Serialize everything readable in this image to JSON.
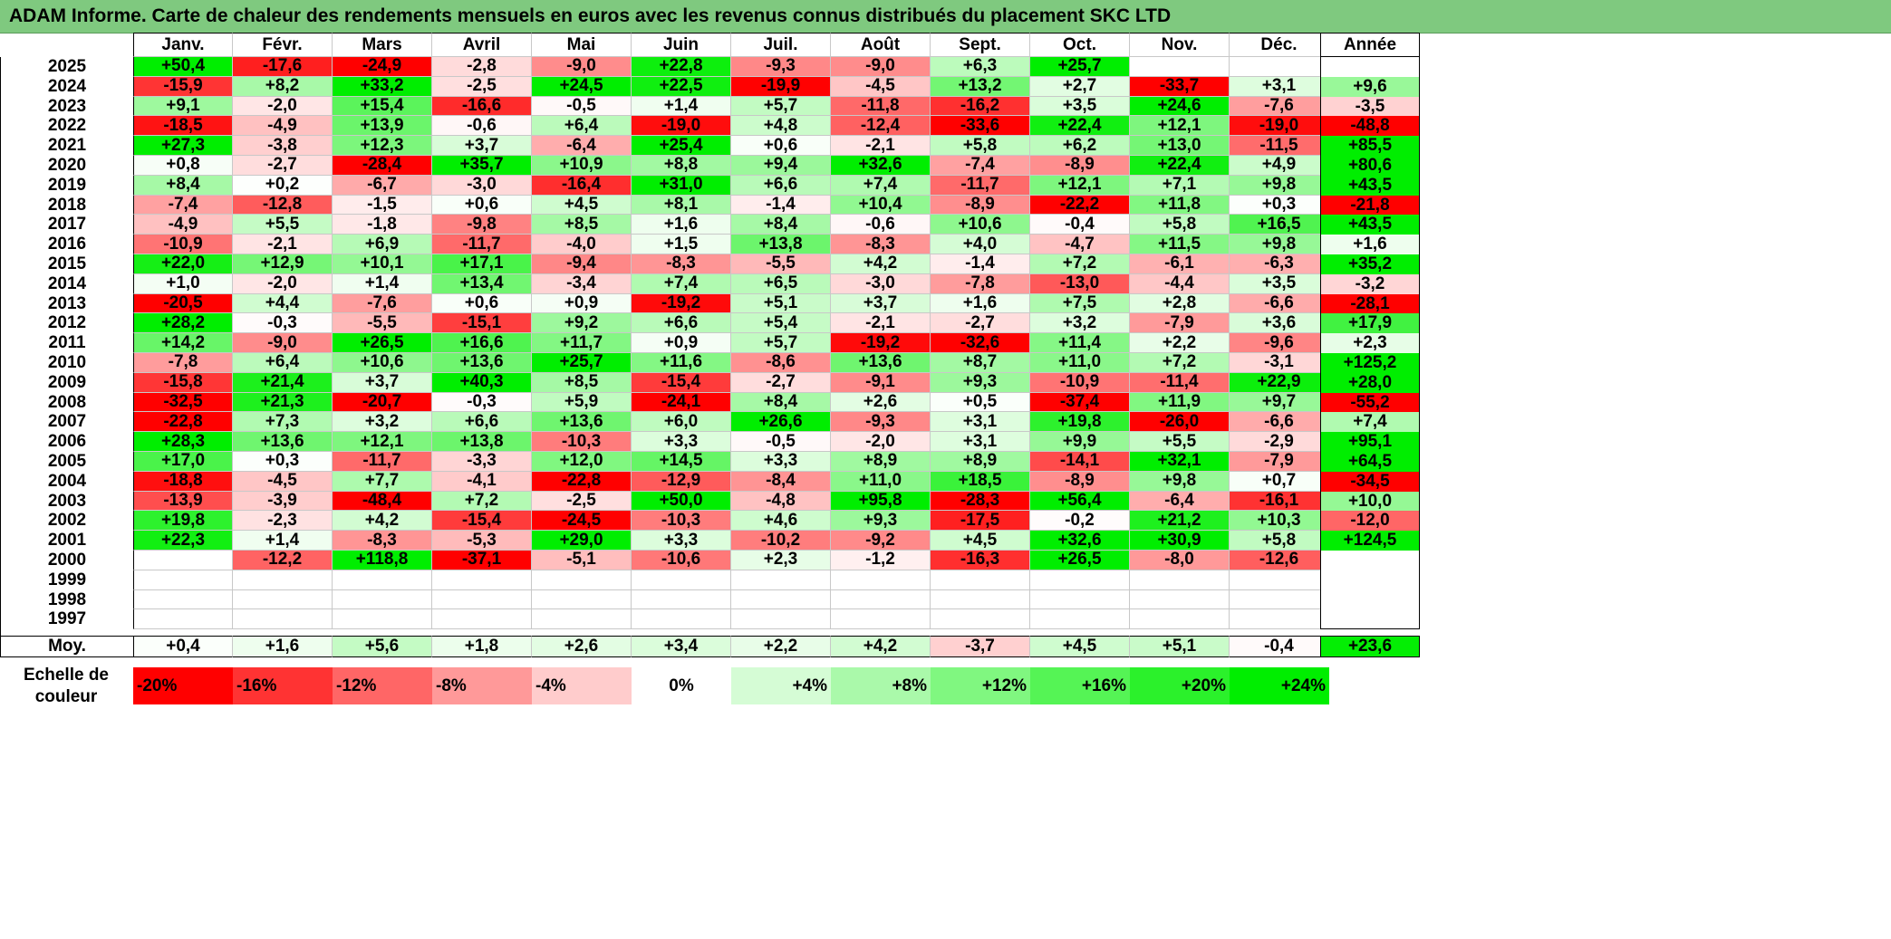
{
  "title": "ADAM Informe. Carte de chaleur des rendements mensuels en euros avec les revenus connus distribués du placement SKC LTD",
  "chart_data": {
    "type": "heatmap",
    "columns": [
      "Janv.",
      "Févr.",
      "Mars",
      "Avril",
      "Mai",
      "Juin",
      "Juil.",
      "Août",
      "Sept.",
      "Oct.",
      "Nov.",
      "Déc."
    ],
    "year_header": "Année",
    "avg_label": "Moy.",
    "rows": [
      {
        "year": "2025",
        "values": [
          "+50,4",
          "-17,6",
          "-24,9",
          "-2,8",
          "-9,0",
          "+22,8",
          "-9,3",
          "-9,0",
          "+6,3",
          "+25,7",
          "",
          ""
        ],
        "annual": ""
      },
      {
        "year": "2024",
        "values": [
          "-15,9",
          "+8,2",
          "+33,2",
          "-2,5",
          "+24,5",
          "+22,5",
          "-19,9",
          "-4,5",
          "+13,2",
          "+2,7",
          "-33,7",
          "+3,1"
        ],
        "annual": "+9,6"
      },
      {
        "year": "2023",
        "values": [
          "+9,1",
          "-2,0",
          "+15,4",
          "-16,6",
          "-0,5",
          "+1,4",
          "+5,7",
          "-11,8",
          "-16,2",
          "+3,5",
          "+24,6",
          "-7,6"
        ],
        "annual": "-3,5"
      },
      {
        "year": "2022",
        "values": [
          "-18,5",
          "-4,9",
          "+13,9",
          "-0,6",
          "+6,4",
          "-19,0",
          "+4,8",
          "-12,4",
          "-33,6",
          "+22,4",
          "+12,1",
          "-19,0"
        ],
        "annual": "-48,8"
      },
      {
        "year": "2021",
        "values": [
          "+27,3",
          "-3,8",
          "+12,3",
          "+3,7",
          "-6,4",
          "+25,4",
          "+0,6",
          "-2,1",
          "+5,8",
          "+6,2",
          "+13,0",
          "-11,5"
        ],
        "annual": "+85,5"
      },
      {
        "year": "2020",
        "values": [
          "+0,8",
          "-2,7",
          "-28,4",
          "+35,7",
          "+10,9",
          "+8,8",
          "+9,4",
          "+32,6",
          "-7,4",
          "-8,9",
          "+22,4",
          "+4,9"
        ],
        "annual": "+80,6"
      },
      {
        "year": "2019",
        "values": [
          "+8,4",
          "+0,2",
          "-6,7",
          "-3,0",
          "-16,4",
          "+31,0",
          "+6,6",
          "+7,4",
          "-11,7",
          "+12,1",
          "+7,1",
          "+9,8"
        ],
        "annual": "+43,5"
      },
      {
        "year": "2018",
        "values": [
          "-7,4",
          "-12,8",
          "-1,5",
          "+0,6",
          "+4,5",
          "+8,1",
          "-1,4",
          "+10,4",
          "-8,9",
          "-22,2",
          "+11,8",
          "+0,3"
        ],
        "annual": "-21,8"
      },
      {
        "year": "2017",
        "values": [
          "-4,9",
          "+5,5",
          "-1,8",
          "-9,8",
          "+8,5",
          "+1,6",
          "+8,4",
          "-0,6",
          "+10,6",
          "-0,4",
          "+5,8",
          "+16,5"
        ],
        "annual": "+43,5"
      },
      {
        "year": "2016",
        "values": [
          "-10,9",
          "-2,1",
          "+6,9",
          "-11,7",
          "-4,0",
          "+1,5",
          "+13,8",
          "-8,3",
          "+4,0",
          "-4,7",
          "+11,5",
          "+9,8"
        ],
        "annual": "+1,6"
      },
      {
        "year": "2015",
        "values": [
          "+22,0",
          "+12,9",
          "+10,1",
          "+17,1",
          "-9,4",
          "-8,3",
          "-5,5",
          "+4,2",
          "-1,4",
          "+7,2",
          "-6,1",
          "-6,3"
        ],
        "annual": "+35,2"
      },
      {
        "year": "2014",
        "values": [
          "+1,0",
          "-2,0",
          "+1,4",
          "+13,4",
          "-3,4",
          "+7,4",
          "+6,5",
          "-3,0",
          "-7,8",
          "-13,0",
          "-4,4",
          "+3,5"
        ],
        "annual": "-3,2"
      },
      {
        "year": "2013",
        "values": [
          "-20,5",
          "+4,4",
          "-7,6",
          "+0,6",
          "+0,9",
          "-19,2",
          "+5,1",
          "+3,7",
          "+1,6",
          "+7,5",
          "+2,8",
          "-6,6"
        ],
        "annual": "-28,1"
      },
      {
        "year": "2012",
        "values": [
          "+28,2",
          "-0,3",
          "-5,5",
          "-15,1",
          "+9,2",
          "+6,6",
          "+5,4",
          "-2,1",
          "-2,7",
          "+3,2",
          "-7,9",
          "+3,6"
        ],
        "annual": "+17,9"
      },
      {
        "year": "2011",
        "values": [
          "+14,2",
          "-9,0",
          "+26,5",
          "+16,6",
          "+11,7",
          "+0,9",
          "+5,7",
          "-19,2",
          "-32,6",
          "+11,4",
          "+2,2",
          "-9,6"
        ],
        "annual": "+2,3"
      },
      {
        "year": "2010",
        "values": [
          "-7,8",
          "+6,4",
          "+10,6",
          "+13,6",
          "+25,7",
          "+11,6",
          "-8,6",
          "+13,6",
          "+8,7",
          "+11,0",
          "+7,2",
          "-3,1"
        ],
        "annual": "+125,2"
      },
      {
        "year": "2009",
        "values": [
          "-15,8",
          "+21,4",
          "+3,7",
          "+40,3",
          "+8,5",
          "-15,4",
          "-2,7",
          "-9,1",
          "+9,3",
          "-10,9",
          "-11,4",
          "+22,9"
        ],
        "annual": "+28,0"
      },
      {
        "year": "2008",
        "values": [
          "-32,5",
          "+21,3",
          "-20,7",
          "-0,3",
          "+5,9",
          "-24,1",
          "+8,4",
          "+2,6",
          "+0,5",
          "-37,4",
          "+11,9",
          "+9,7"
        ],
        "annual": "-55,2"
      },
      {
        "year": "2007",
        "values": [
          "-22,8",
          "+7,3",
          "+3,2",
          "+6,6",
          "+13,6",
          "+6,0",
          "+26,6",
          "-9,3",
          "+3,1",
          "+19,8",
          "-26,0",
          "-6,6"
        ],
        "annual": "+7,4"
      },
      {
        "year": "2006",
        "values": [
          "+28,3",
          "+13,6",
          "+12,1",
          "+13,8",
          "-10,3",
          "+3,3",
          "-0,5",
          "-2,0",
          "+3,1",
          "+9,9",
          "+5,5",
          "-2,9"
        ],
        "annual": "+95,1"
      },
      {
        "year": "2005",
        "values": [
          "+17,0",
          "+0,3",
          "-11,7",
          "-3,3",
          "+12,0",
          "+14,5",
          "+3,3",
          "+8,9",
          "+8,9",
          "-14,1",
          "+32,1",
          "-7,9"
        ],
        "annual": "+64,5"
      },
      {
        "year": "2004",
        "values": [
          "-18,8",
          "-4,5",
          "+7,7",
          "-4,1",
          "-22,8",
          "-12,9",
          "-8,4",
          "+11,0",
          "+18,5",
          "-8,9",
          "+9,8",
          "+0,7"
        ],
        "annual": "-34,5"
      },
      {
        "year": "2003",
        "values": [
          "-13,9",
          "-3,9",
          "-48,4",
          "+7,2",
          "-2,5",
          "+50,0",
          "-4,8",
          "+95,8",
          "-28,3",
          "+56,4",
          "-6,4",
          "-16,1"
        ],
        "annual": "+10,0"
      },
      {
        "year": "2002",
        "values": [
          "+19,8",
          "-2,3",
          "+4,2",
          "-15,4",
          "-24,5",
          "-10,3",
          "+4,6",
          "+9,3",
          "-17,5",
          "-0,2",
          "+21,2",
          "+10,3"
        ],
        "annual": "-12,0"
      },
      {
        "year": "2001",
        "values": [
          "+22,3",
          "+1,4",
          "-8,3",
          "-5,3",
          "+29,0",
          "+3,3",
          "-10,2",
          "-9,2",
          "+4,5",
          "+32,6",
          "+30,9",
          "+5,8"
        ],
        "annual": "+124,5"
      },
      {
        "year": "2000",
        "values": [
          "",
          "-12,2",
          "+118,8",
          "-37,1",
          "-5,1",
          "-10,6",
          "+2,3",
          "-1,2",
          "-16,3",
          "+26,5",
          "-8,0",
          "-12,6"
        ],
        "annual": ""
      },
      {
        "year": "1999",
        "values": [
          "",
          "",
          "",
          "",
          "",
          "",
          "",
          "",
          "",
          "",
          "",
          ""
        ],
        "annual": ""
      },
      {
        "year": "1998",
        "values": [
          "",
          "",
          "",
          "",
          "",
          "",
          "",
          "",
          "",
          "",
          "",
          ""
        ],
        "annual": ""
      },
      {
        "year": "1997",
        "values": [
          "",
          "",
          "",
          "",
          "",
          "",
          "",
          "",
          "",
          "",
          "",
          ""
        ],
        "annual": ""
      }
    ],
    "averages": [
      "+0,4",
      "+1,6",
      "+5,6",
      "+1,8",
      "+2,6",
      "+3,4",
      "+2,2",
      "+4,2",
      "-3,7",
      "+4,5",
      "+5,1",
      "-0,4"
    ],
    "average_annual": "+23,6",
    "color_scale": {
      "label_line1": "Echelle de",
      "label_line2": "couleur",
      "stops": [
        {
          "label": "-20%",
          "value": -20
        },
        {
          "label": "-16%",
          "value": -16
        },
        {
          "label": "-12%",
          "value": -12
        },
        {
          "label": "-8%",
          "value": -8
        },
        {
          "label": "-4%",
          "value": -4
        },
        {
          "label": "0%",
          "value": 0
        },
        {
          "label": "+4%",
          "value": 4
        },
        {
          "label": "+8%",
          "value": 8
        },
        {
          "label": "+12%",
          "value": 12
        },
        {
          "label": "+16%",
          "value": 16
        },
        {
          "label": "+20%",
          "value": 20
        },
        {
          "label": "+24%",
          "value": 24
        }
      ],
      "negative_color": "#ff0000",
      "positive_color": "#00ee00",
      "neutral_color": "#ffffff"
    }
  }
}
